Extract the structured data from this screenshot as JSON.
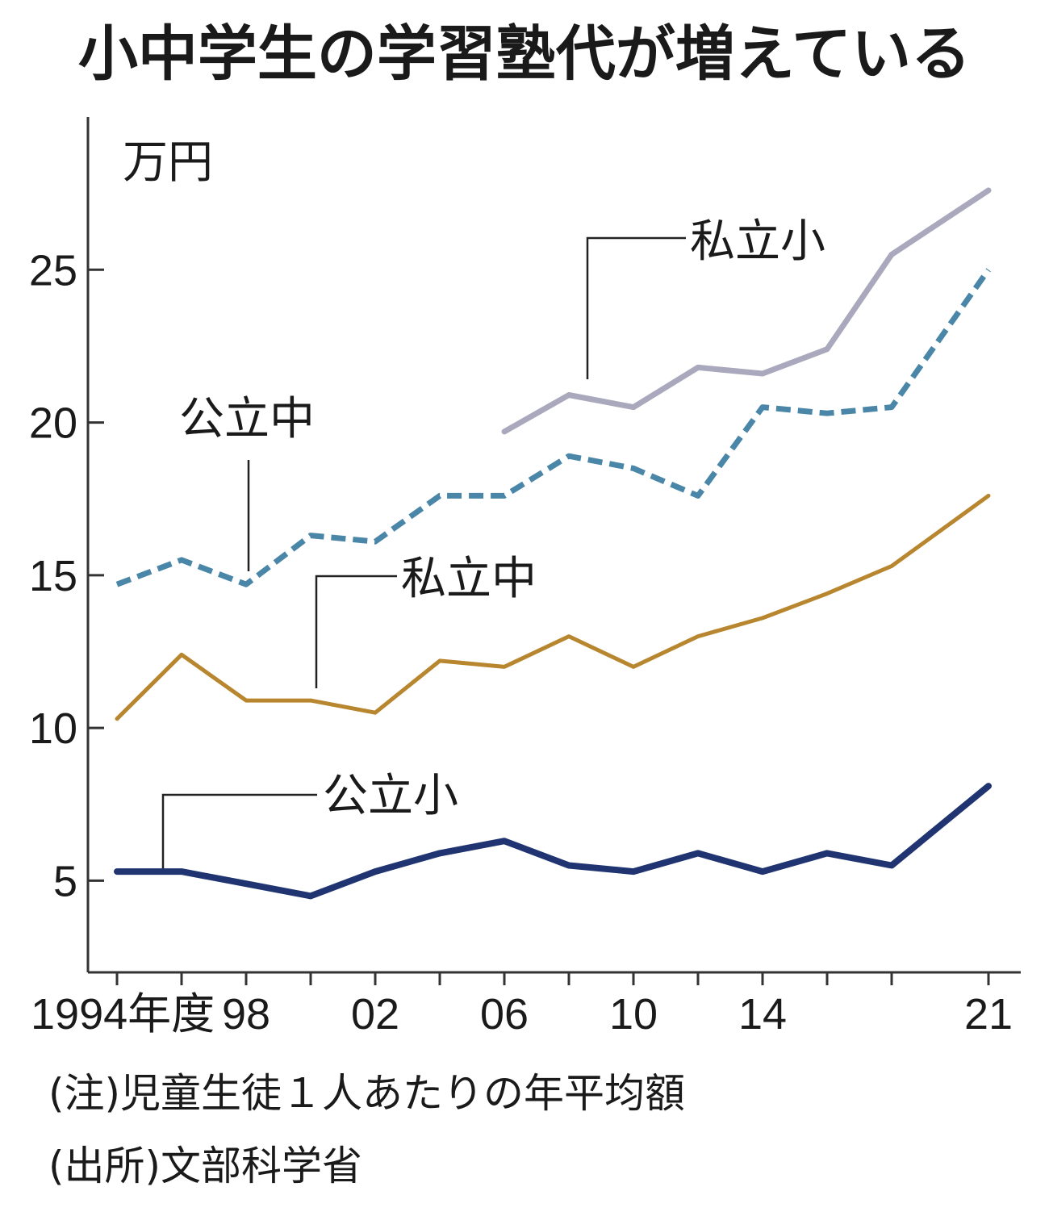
{
  "chart_data": {
    "type": "line",
    "title": "小中学生の学習塾代が増えている",
    "ylabel": "万円",
    "ylim": [
      2,
      30
    ],
    "yticks": [
      5,
      10,
      15,
      20,
      25
    ],
    "xlim": [
      1993.8,
      2021.9
    ],
    "xticks": [
      {
        "value": 1994,
        "label": "1994年度"
      },
      {
        "value": 1998,
        "label": "98"
      },
      {
        "value": 2002,
        "label": "02"
      },
      {
        "value": 2006,
        "label": "06"
      },
      {
        "value": 2010,
        "label": "10"
      },
      {
        "value": 2014,
        "label": "14"
      },
      {
        "value": 2021,
        "label": "21"
      }
    ],
    "series": [
      {
        "key": "private-elementary",
        "name": "私立小",
        "color": "#a9a8bd",
        "style": "solid",
        "width": 7,
        "x": [
          2006,
          2008,
          2010,
          2012,
          2014,
          2016,
          2018,
          2021
        ],
        "values": [
          19.7,
          20.9,
          20.5,
          21.8,
          21.6,
          22.4,
          25.5,
          27.6
        ]
      },
      {
        "key": "public-junior-high",
        "name": "公立中",
        "color": "#4a86a8",
        "style": "dashed",
        "width": 7,
        "x": [
          1994,
          1996,
          1998,
          2000,
          2002,
          2004,
          2006,
          2008,
          2010,
          2012,
          2014,
          2016,
          2018,
          2021
        ],
        "values": [
          14.7,
          15.5,
          14.7,
          16.3,
          16.1,
          17.6,
          17.6,
          18.9,
          18.5,
          17.6,
          20.5,
          20.3,
          20.5,
          25.0
        ]
      },
      {
        "key": "private-junior-high",
        "name": "私立中",
        "color": "#b8862e",
        "style": "solid",
        "width": 5,
        "x": [
          1994,
          1996,
          1998,
          2000,
          2002,
          2004,
          2006,
          2008,
          2010,
          2012,
          2014,
          2016,
          2018,
          2021
        ],
        "values": [
          10.3,
          12.4,
          10.9,
          10.9,
          10.5,
          12.2,
          12.0,
          13.0,
          12.0,
          13.0,
          13.6,
          14.4,
          15.3,
          17.6
        ]
      },
      {
        "key": "public-elementary",
        "name": "公立小",
        "color": "#1f3470",
        "style": "solid",
        "width": 8,
        "x": [
          1994,
          1996,
          1998,
          2000,
          2002,
          2004,
          2006,
          2008,
          2010,
          2012,
          2014,
          2016,
          2018,
          2021
        ],
        "values": [
          5.3,
          5.3,
          4.9,
          4.5,
          5.3,
          5.9,
          6.3,
          5.5,
          5.3,
          5.9,
          5.3,
          5.9,
          5.5,
          8.1
        ]
      }
    ]
  },
  "notes": {
    "note": "(注)児童生徒１人あたりの年平均額",
    "source": "(出所)文部科学省"
  }
}
